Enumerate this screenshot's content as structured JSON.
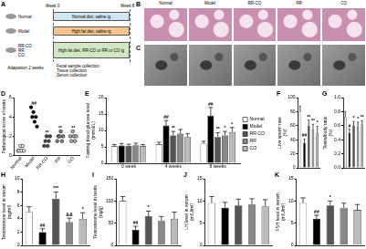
{
  "diagram": {
    "panel": "A",
    "weeks": [
      "Week 0",
      "Week 8"
    ],
    "groups": [
      {
        "labels": [
          "Normal"
        ],
        "treatment": "Normal diet, saline ig"
      },
      {
        "labels": [
          "Model"
        ],
        "treatment": "High fat diet, saline ig"
      },
      {
        "labels": [
          "RR-CO",
          "RR",
          "CO"
        ],
        "treatment": "High fat diet, RR-CO or RR or CO ig"
      }
    ],
    "adaptation": "Adaptation 2 weeks",
    "collection": [
      "Fecal sample collection",
      "Tissue collection",
      "Serum collection"
    ]
  },
  "images": [
    {
      "panel": "B",
      "columns": [
        "Normal",
        "Model",
        "RR-CO",
        "RR",
        "CO"
      ]
    },
    {
      "panel": "C"
    }
  ],
  "chart_data": [
    {
      "panel": "D",
      "type": "strip",
      "y_label": "Pathological score of testis",
      "categories": [
        "Normal",
        "Model",
        "RR-CO",
        "RR",
        "CO"
      ],
      "colors": [
        "#ffffff",
        "#000000",
        "#555555",
        "#888888",
        "#bbbbbb"
      ],
      "values": [
        [
          0.5,
          0.5,
          1,
          0.5,
          1,
          0.5
        ],
        [
          5,
          4,
          4.5,
          3.5,
          4,
          3
        ],
        [
          1,
          1.5,
          2,
          1,
          1.5,
          2
        ],
        [
          1.5,
          2,
          2,
          2.5,
          1.5,
          2
        ],
        [
          2,
          1.5,
          2.5,
          2,
          1.5,
          2
        ]
      ],
      "ylim": [
        0,
        6
      ],
      "yticks": [
        0,
        2,
        4,
        6
      ],
      "grid": false,
      "annotations": [
        {
          "category": "Model",
          "text": "##"
        },
        {
          "category": "RR-CO",
          "text": "**"
        },
        {
          "category": "RR",
          "text": "**"
        },
        {
          "category": "CO",
          "text": "**"
        }
      ]
    },
    {
      "panel": "E",
      "type": "bar",
      "y_label": "Fasting blood glucose level (mmol/L)",
      "categories": [
        "0 week",
        "4 weeks",
        "8 weeks"
      ],
      "series": [
        {
          "name": "Normal",
          "color": "#ffffff",
          "values": [
            5.2,
            5.8,
            6.0
          ],
          "errors": [
            0.5,
            0.6,
            0.7
          ]
        },
        {
          "name": "Model",
          "color": "#000000",
          "values": [
            5.4,
            11.5,
            14.5
          ],
          "errors": [
            0.6,
            1.5,
            2.5
          ]
        },
        {
          "name": "RR-CO",
          "color": "#555555",
          "values": [
            5.3,
            8.5,
            8.0
          ],
          "errors": [
            0.5,
            1.2,
            1.3
          ]
        },
        {
          "name": "RR",
          "color": "#888888",
          "values": [
            5.5,
            9.0,
            8.5
          ],
          "errors": [
            0.6,
            1.3,
            1.2
          ]
        },
        {
          "name": "CO",
          "color": "#bbbbbb",
          "values": [
            5.2,
            8.0,
            9.5
          ],
          "errors": [
            0.5,
            1.0,
            1.4
          ]
        }
      ],
      "ylim": [
        0,
        20
      ],
      "yticks": [
        0,
        5,
        10,
        15,
        20
      ],
      "grid": false,
      "legend": "right",
      "annotations": [
        {
          "series": "Model",
          "category": "4 weeks",
          "text": "##"
        },
        {
          "series": "Model",
          "category": "8 weeks",
          "text": "##"
        },
        {
          "series": "RR-CO",
          "category": "4 weeks",
          "text": "**"
        },
        {
          "series": "RR-CO",
          "category": "8 weeks",
          "text": "**"
        },
        {
          "series": "RR",
          "category": "8 weeks",
          "text": "*"
        },
        {
          "series": "CO",
          "category": "8 weeks",
          "text": "*"
        }
      ]
    },
    {
      "panel": "F",
      "type": "bar",
      "y_label": "Live sperm rate (%)",
      "categories": [
        "Normal",
        "Model",
        "RR-CO",
        "RR",
        "CO"
      ],
      "colors": [
        "#ffffff",
        "#000000",
        "#555555",
        "#888888",
        "#bbbbbb"
      ],
      "values": [
        80,
        35,
        60,
        55,
        50
      ],
      "errors": [
        8,
        6,
        8,
        7,
        9
      ],
      "ylim": [
        0,
        100
      ],
      "yticks": [
        0,
        20,
        40,
        60,
        80,
        100
      ],
      "grid": false,
      "tick_labels": "y",
      "annotations": [
        {
          "category": "Model",
          "text": "##"
        },
        {
          "category": "RR-CO",
          "text": "**"
        },
        {
          "category": "RR",
          "text": "**"
        },
        {
          "category": "CO",
          "text": "*"
        }
      ]
    },
    {
      "panel": "G",
      "type": "bar",
      "y_label": "Testis/body ratio (%)",
      "categories": [
        "Normal",
        "Model",
        "RR-CO",
        "RR",
        "CO"
      ],
      "colors": [
        "#ffffff",
        "#000000",
        "#555555",
        "#888888",
        "#bbbbbb"
      ],
      "values": [
        0.72,
        0.5,
        0.6,
        0.58,
        0.62
      ],
      "errors": [
        0.08,
        0.05,
        0.06,
        0.07,
        0.05
      ],
      "ylim": [
        0,
        1
      ],
      "yticks": [
        {
          "value": 0,
          "label": "0.0"
        },
        0.2,
        0.4,
        0.6,
        0.8,
        {
          "value": 1,
          "label": "1.0"
        }
      ],
      "grid": false,
      "tick_labels": "y",
      "annotations": [
        {
          "category": "Model",
          "text": "#"
        },
        {
          "category": "RR-CO",
          "text": "*"
        },
        {
          "category": "RR",
          "text": "*"
        },
        {
          "category": "CO",
          "text": "**"
        }
      ]
    },
    {
      "panel": "H",
      "type": "bar",
      "y_label": "Testosterone level in serum (ng/ml)",
      "categories": [
        "Normal",
        "Model",
        "RR-CO",
        "RR",
        "CO"
      ],
      "colors": [
        "#ffffff",
        "#000000",
        "#555555",
        "#888888",
        "#bbbbbb"
      ],
      "values": [
        5.0,
        2.0,
        7.0,
        3.5,
        4.0
      ],
      "errors": [
        0.8,
        0.5,
        1.0,
        0.6,
        0.9
      ],
      "ylim": [
        0,
        10
      ],
      "yticks": [
        0,
        2,
        4,
        6,
        8,
        10
      ],
      "grid": false,
      "tick_labels": "y",
      "annotations": [
        {
          "category": "Model",
          "text": "##"
        },
        {
          "category": "RR-CO",
          "text": "***"
        },
        {
          "category": "RR",
          "text": "&&"
        },
        {
          "category": "CO",
          "text": "*"
        }
      ]
    },
    {
      "panel": "I",
      "type": "bar",
      "y_label": "Testosterone level in testis (ng/g)",
      "categories": [
        "Normal",
        "Model",
        "RR-CO",
        "RR",
        "CO"
      ],
      "colors": [
        "#ffffff",
        "#000000",
        "#555555",
        "#888888",
        "#bbbbbb"
      ],
      "values": [
        100,
        35,
        65,
        55,
        60
      ],
      "errors": [
        10,
        8,
        12,
        10,
        15
      ],
      "ylim": [
        0,
        150
      ],
      "yticks": [
        0,
        50,
        100,
        150
      ],
      "grid": false,
      "tick_labels": "y",
      "annotations": [
        {
          "category": "Model",
          "text": "##"
        },
        {
          "category": "RR-CO",
          "text": "*"
        }
      ]
    },
    {
      "panel": "J",
      "type": "bar",
      "y_label": "LH level in serum (mIU/ml)",
      "categories": [
        "Normal",
        "Model",
        "RR-CO",
        "RR",
        "CO"
      ],
      "colors": [
        "#ffffff",
        "#000000",
        "#555555",
        "#888888",
        "#bbbbbb"
      ],
      "values": [
        9.5,
        8.5,
        9.0,
        9.2,
        8.8
      ],
      "errors": [
        1.5,
        1.2,
        1.4,
        1.3,
        1.5
      ],
      "ylim": [
        0,
        15
      ],
      "yticks": [
        0,
        5,
        10,
        15
      ],
      "grid": false,
      "tick_labels": "y"
    },
    {
      "panel": "K",
      "type": "bar",
      "y_label": "FSH level in serum (mIU/ml)",
      "categories": [
        "Normal",
        "Model",
        "RR-CO",
        "RR",
        "CO"
      ],
      "colors": [
        "#ffffff",
        "#000000",
        "#555555",
        "#888888",
        "#bbbbbb"
      ],
      "values": [
        9.5,
        6.0,
        9.0,
        8.5,
        8.0
      ],
      "errors": [
        1.2,
        0.8,
        1.0,
        1.0,
        1.2
      ],
      "ylim": [
        0,
        15
      ],
      "yticks": [
        0,
        5,
        10,
        15
      ],
      "grid": false,
      "tick_labels": "y",
      "annotations": [
        {
          "category": "Model",
          "text": "##"
        },
        {
          "category": "RR-CO",
          "text": "*"
        }
      ]
    }
  ]
}
